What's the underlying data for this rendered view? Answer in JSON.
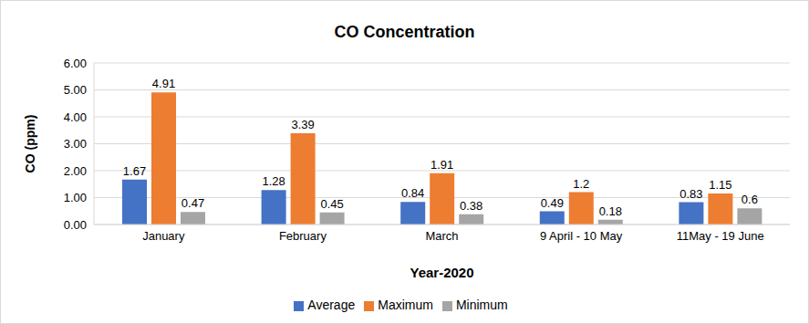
{
  "chart_data": {
    "type": "bar",
    "title": "CO Concentration",
    "x_label": "Year-2020",
    "y_label": "CO (ppm)",
    "categories": [
      "January",
      "February",
      "March",
      "9 April - 10 May",
      "11May - 19 June"
    ],
    "series": [
      {
        "name": "Average",
        "color": "#4472c4",
        "values": [
          1.67,
          1.28,
          0.84,
          0.49,
          0.83
        ]
      },
      {
        "name": "Maximum",
        "color": "#ed7d31",
        "values": [
          4.91,
          3.39,
          1.91,
          1.2,
          1.15
        ]
      },
      {
        "name": "Minimum",
        "color": "#a5a5a5",
        "values": [
          0.47,
          0.45,
          0.38,
          0.18,
          0.6
        ]
      }
    ],
    "ylim": [
      0,
      6
    ],
    "yticks": [
      {
        "value": 0,
        "label": "0.00"
      },
      {
        "value": 1,
        "label": "1.00"
      },
      {
        "value": 2,
        "label": "2.00"
      },
      {
        "value": 3,
        "label": "3.00"
      },
      {
        "value": 4,
        "label": "4.00"
      },
      {
        "value": 5,
        "label": "5.00"
      },
      {
        "value": 6,
        "label": "6.00"
      }
    ],
    "grid": true,
    "legend": "bottom",
    "data_labels": true
  }
}
